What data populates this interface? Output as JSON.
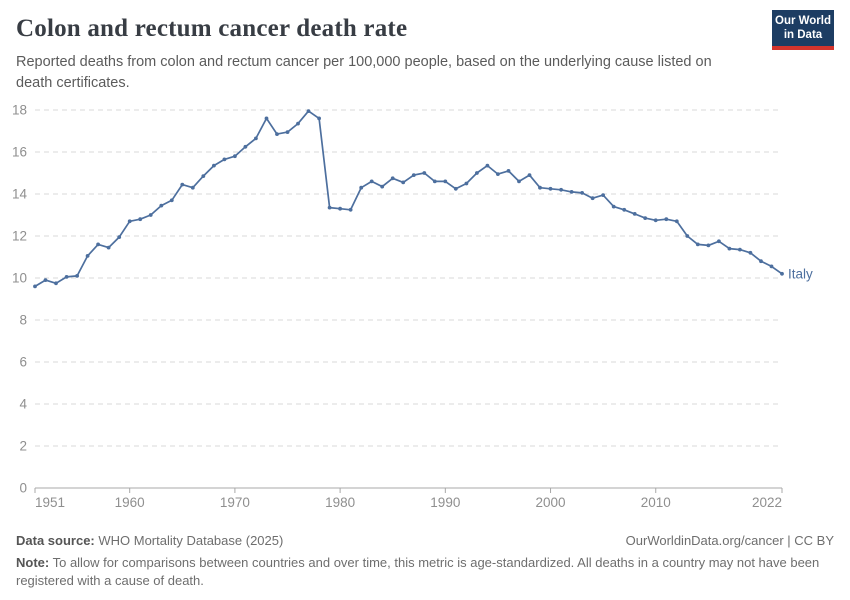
{
  "header": {
    "title": "Colon and rectum cancer death rate",
    "subtitle": "Reported deaths from colon and rectum cancer per 100,000 people, based on the underlying cause listed on death certificates.",
    "logo": {
      "line1": "Our World",
      "line2": "in Data"
    }
  },
  "chart_data": {
    "type": "line",
    "title": "Colon and rectum cancer death rate",
    "xlabel": "",
    "ylabel": "",
    "xlim": [
      1951,
      2022
    ],
    "ylim": [
      0,
      18
    ],
    "x_ticks": [
      1951,
      1960,
      1970,
      1980,
      1990,
      2000,
      2010,
      2022
    ],
    "y_ticks": [
      0,
      2,
      4,
      6,
      8,
      10,
      12,
      14,
      16,
      18
    ],
    "grid": "horizontal-dashed",
    "legend_position": "end-of-line-label",
    "series": [
      {
        "name": "Italy",
        "start_year": 1951,
        "years": [
          1951,
          1952,
          1953,
          1954,
          1955,
          1956,
          1957,
          1958,
          1959,
          1960,
          1961,
          1962,
          1963,
          1964,
          1965,
          1966,
          1967,
          1968,
          1969,
          1970,
          1971,
          1972,
          1973,
          1974,
          1975,
          1976,
          1977,
          1978,
          1979,
          1980,
          1981,
          1982,
          1983,
          1984,
          1985,
          1986,
          1987,
          1988,
          1989,
          1990,
          1991,
          1992,
          1993,
          1994,
          1995,
          1996,
          1997,
          1998,
          1999,
          2000,
          2001,
          2002,
          2003,
          2004,
          2005,
          2006,
          2007,
          2008,
          2009,
          2010,
          2011,
          2012,
          2013,
          2014,
          2015,
          2016,
          2017,
          2018,
          2019,
          2020,
          2021,
          2022
        ],
        "values": [
          9.6,
          9.9,
          9.75,
          10.05,
          10.1,
          11.05,
          11.6,
          11.45,
          11.95,
          12.7,
          12.8,
          13.0,
          13.45,
          13.7,
          14.45,
          14.3,
          14.85,
          15.35,
          15.65,
          15.8,
          16.25,
          16.65,
          17.6,
          16.85,
          16.95,
          17.35,
          17.95,
          17.6,
          13.35,
          13.3,
          13.25,
          14.3,
          14.6,
          14.35,
          14.75,
          14.55,
          14.9,
          15.0,
          14.6,
          14.6,
          14.25,
          14.5,
          15.0,
          15.35,
          14.95,
          15.1,
          14.6,
          14.9,
          14.3,
          14.25,
          14.2,
          14.1,
          14.05,
          13.8,
          13.95,
          13.4,
          13.25,
          13.05,
          12.85,
          12.75,
          12.8,
          12.7,
          12.0,
          11.6,
          11.55,
          11.75,
          11.4,
          11.35,
          11.2,
          10.8,
          10.55,
          10.2
        ]
      }
    ]
  },
  "footer": {
    "source_label": "Data source:",
    "source_value": " WHO Mortality Database (2025)",
    "link": "OurWorldinData.org/cancer | CC BY",
    "note_label": "Note:",
    "note_value": " To allow for comparisons between countries and over time, this metric is age-standardized. All deaths in a country may not have been registered with a cause of death."
  },
  "colors": {
    "line": "#4d6f9e",
    "title_text": "#383d44",
    "subtitle_text": "#5b5b5b",
    "axis_text": "#8f8f8f",
    "grid": "#d9d9d9",
    "axis_line": "#a8a8a8",
    "logo_navy": "#1d3d63",
    "logo_red": "#d4342c"
  }
}
